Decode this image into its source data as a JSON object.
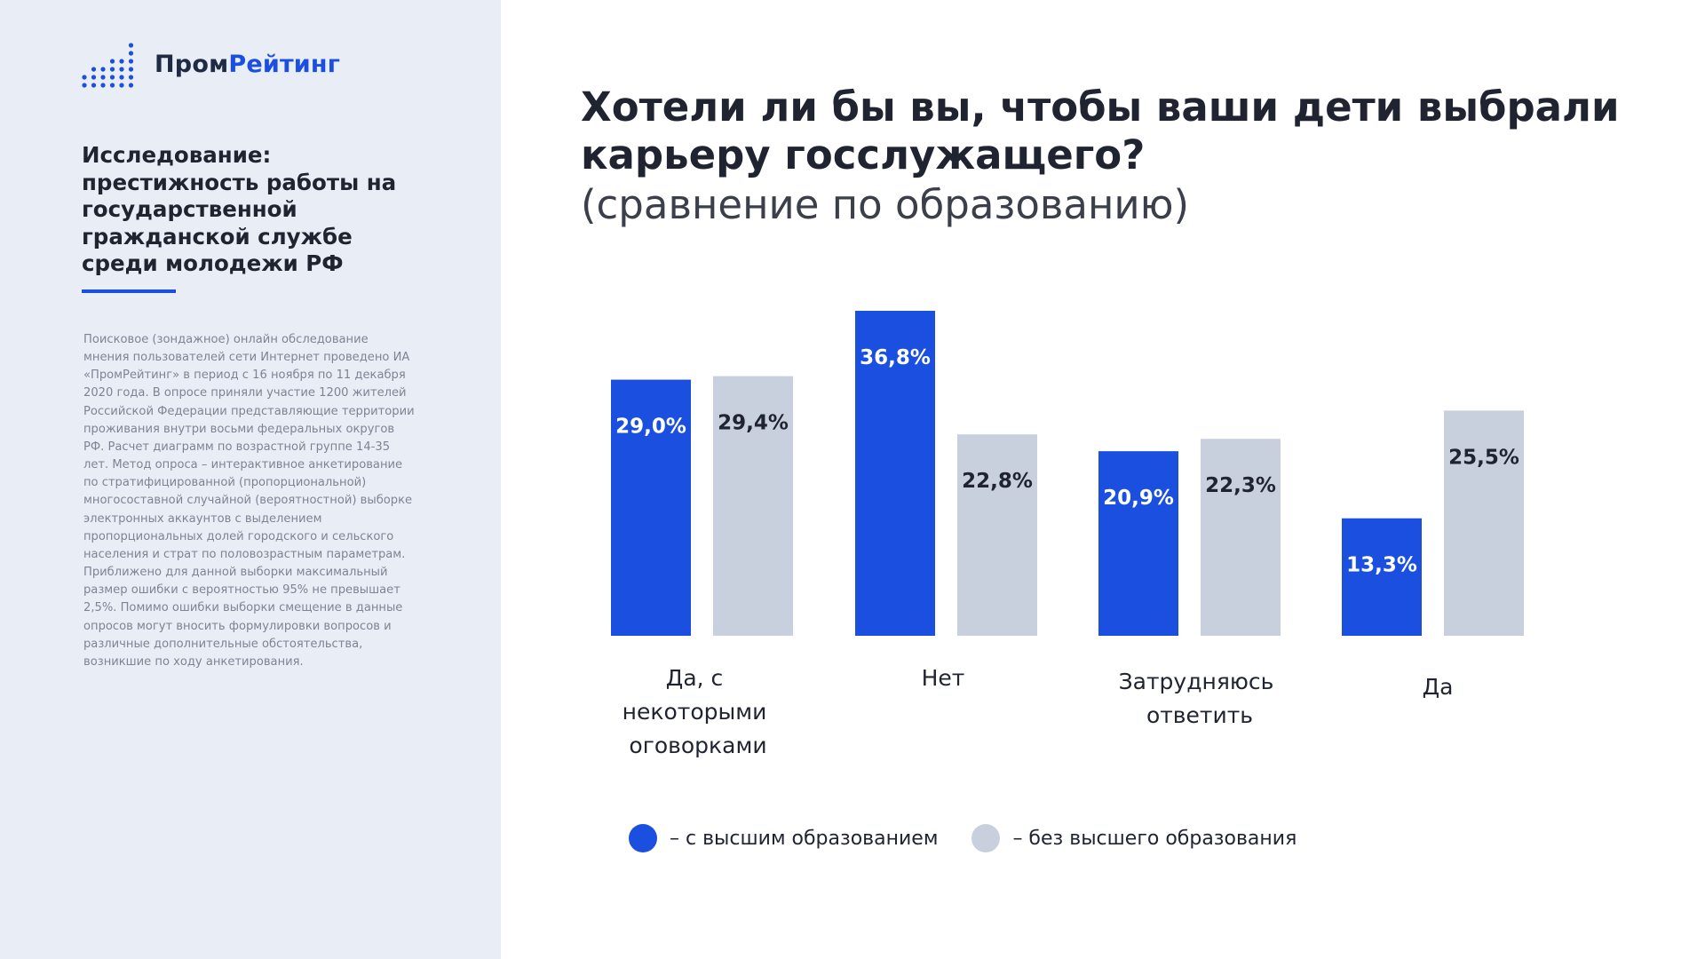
{
  "logo": {
    "part1": "Пром",
    "part2": "Рейтинг",
    "icon": "dot-bars-icon"
  },
  "sidebar": {
    "study_title": "Исследование: престижность работы на государственной гражданской службе среди молодежи РФ",
    "methodology": "Поисковое (зондажное) онлайн обследование мнения пользователей сети Интернет проведено ИА «ПромРейтинг» в период с 16 ноября по 11 декабря 2020 года. В опросе приняли участие 1200 жителей Российской Федерации представляющие территории проживания внутри восьми федеральных округов РФ. Расчет диаграмм по возрастной группе 14-35 лет. Метод опроса – интерактивное анкетирование по стратифицированной (пропорциональной) многосоставной случайной (вероятностной) выборке электронных аккаунтов с выделением пропорциональных долей городского и сельского населения и страт по половозрастным параметрам. Приближено для данной выборки максимальный размер ошибки с вероятностью 95% не превышает 2,5%. Помимо ошибки выборки смещение в данные опросов могут вносить формулировки вопросов и различные дополнительные обстоятельства, возникшие по ходу анкетирования."
  },
  "colors": {
    "accent": "#1a4fe0",
    "grey_bar": "#c8d0de",
    "sidebar_bg": "#e9edf5"
  },
  "chart_data": {
    "type": "bar",
    "title": "Хотели ли бы вы, чтобы ваши дети выбрали карьеру госслужащего?",
    "subtitle": "(сравнение по образованию)",
    "categories": [
      "Да, с некоторыми оговорками",
      "Нет",
      "Затрудняюсь ответить",
      "Да"
    ],
    "series": [
      {
        "name": "– с высшим образованием",
        "values": [
          29.0,
          36.8,
          20.9,
          13.3
        ],
        "labels": [
          "29,0%",
          "36,8%",
          "20,9%",
          "13,3%"
        ],
        "color": "#1a4fe0"
      },
      {
        "name": "– без высшего образования",
        "values": [
          29.4,
          22.8,
          22.3,
          25.5
        ],
        "labels": [
          "29,4%",
          "22,8%",
          "22,3%",
          "25,5%"
        ],
        "color": "#c8d0de"
      }
    ],
    "ylim": [
      0,
      37
    ],
    "grid": false,
    "legend_position": "bottom"
  }
}
